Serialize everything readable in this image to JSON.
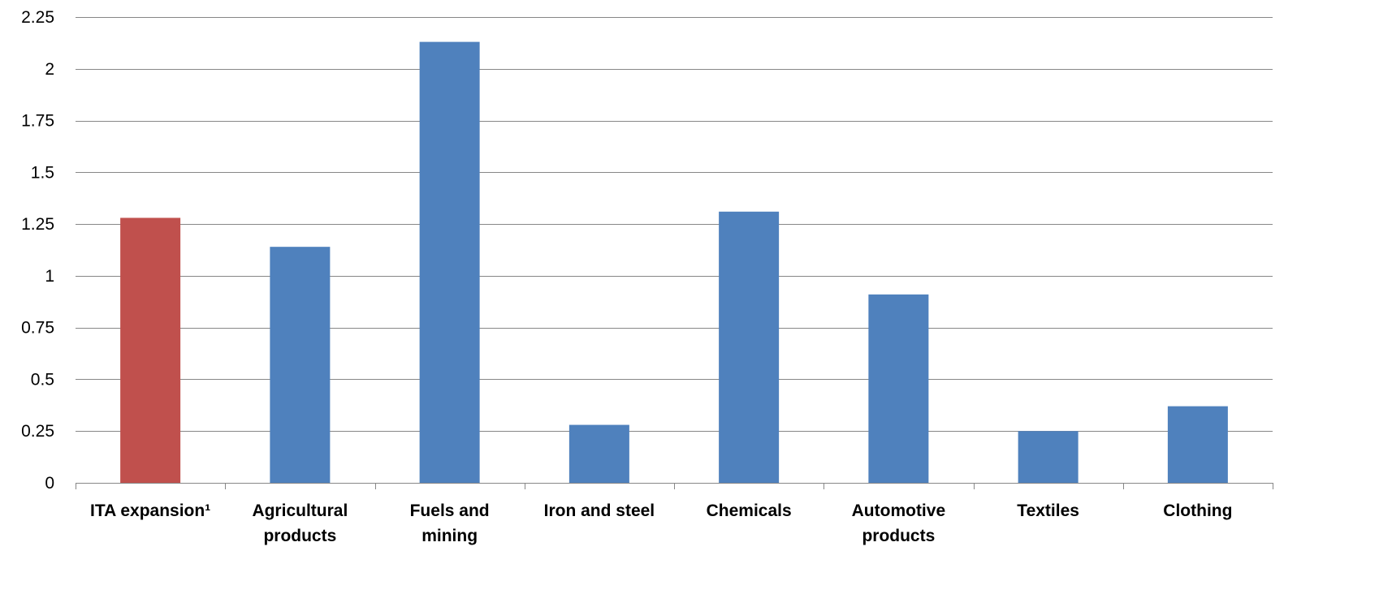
{
  "chart_data": {
    "type": "bar",
    "title": "",
    "xlabel": "",
    "ylabel": "",
    "categories": [
      [
        "ITA expansion¹"
      ],
      [
        "Agricultural",
        "products"
      ],
      [
        "Fuels and",
        "mining"
      ],
      [
        "Iron and steel"
      ],
      [
        "Chemicals"
      ],
      [
        "Automotive",
        "products"
      ],
      [
        "Textiles"
      ],
      [
        "Clothing"
      ]
    ],
    "values": [
      1.28,
      1.14,
      2.13,
      0.28,
      1.31,
      0.91,
      0.25,
      0.37
    ],
    "bar_colors": [
      "#C0504D",
      "#4F81BD",
      "#4F81BD",
      "#4F81BD",
      "#4F81BD",
      "#4F81BD",
      "#4F81BD",
      "#4F81BD"
    ],
    "ylim": [
      0,
      2.25
    ],
    "yticks": [
      0,
      0.25,
      0.5,
      0.75,
      1,
      1.25,
      1.5,
      1.75,
      2,
      2.25
    ],
    "ytick_labels": [
      "0",
      "0.25",
      "0.5",
      "0.75",
      "1",
      "1.25",
      "1.5",
      "1.75",
      "2",
      "2.25"
    ],
    "grid": true,
    "legend": "none"
  }
}
